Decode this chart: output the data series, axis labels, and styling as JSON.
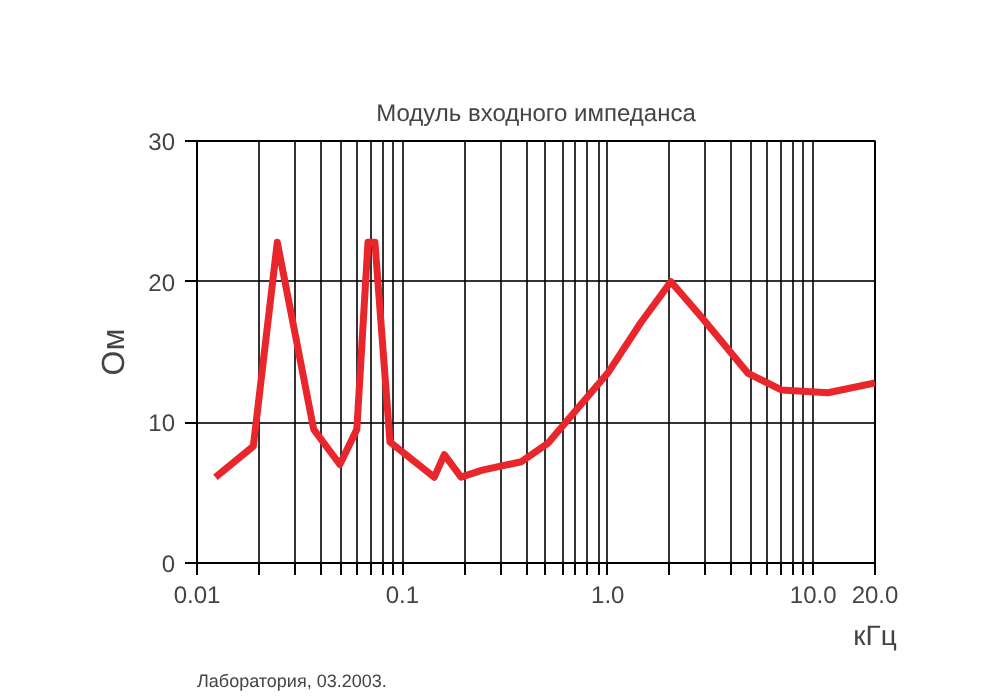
{
  "chart_data": {
    "type": "line",
    "title": "Модуль входного импеданса",
    "xlabel": "кГц",
    "ylabel": "Ом",
    "annotations": [
      "Лаборатория, 03.2003."
    ],
    "x": [
      0.0123,
      0.0188,
      0.0246,
      0.037,
      0.0496,
      0.06,
      0.068,
      0.0735,
      0.087,
      0.143,
      0.16,
      0.193,
      0.245,
      0.38,
      0.51,
      1.0,
      1.45,
      2.03,
      2.85,
      4.8,
      7.0,
      11.8,
      20
    ],
    "series": [
      {
        "color": "#e8262b",
        "values": [
          6.1,
          8.3,
          22.8,
          9.5,
          7.0,
          9.5,
          22.8,
          22.8,
          8.6,
          6.1,
          7.7,
          6.1,
          6.6,
          7.2,
          8.5,
          13.5,
          17.1,
          20.0,
          17.5,
          13.5,
          12.3,
          12.1,
          12.8
        ]
      }
    ],
    "log": "x",
    "xlim": [
      0.01,
      20
    ],
    "ylim": [
      0,
      30
    ],
    "xticks": [
      {
        "value": 0.01,
        "label": "0.01"
      },
      {
        "value": 0.02,
        "label": null
      },
      {
        "value": 0.03,
        "label": null
      },
      {
        "value": 0.04,
        "label": null
      },
      {
        "value": 0.05,
        "label": null
      },
      {
        "value": 0.06,
        "label": null
      },
      {
        "value": 0.07,
        "label": null
      },
      {
        "value": 0.08,
        "label": null
      },
      {
        "value": 0.09,
        "label": null
      },
      {
        "value": 0.1,
        "label": "0.1"
      },
      {
        "value": 0.2,
        "label": null
      },
      {
        "value": 0.3,
        "label": null
      },
      {
        "value": 0.4,
        "label": null
      },
      {
        "value": 0.5,
        "label": null
      },
      {
        "value": 0.6,
        "label": null
      },
      {
        "value": 0.7,
        "label": null
      },
      {
        "value": 0.8,
        "label": null
      },
      {
        "value": 0.9,
        "label": null
      },
      {
        "value": 1,
        "label": "1.0"
      },
      {
        "value": 2,
        "label": null
      },
      {
        "value": 3,
        "label": null
      },
      {
        "value": 4,
        "label": null
      },
      {
        "value": 5,
        "label": null
      },
      {
        "value": 6,
        "label": null
      },
      {
        "value": 7,
        "label": null
      },
      {
        "value": 8,
        "label": null
      },
      {
        "value": 9,
        "label": null
      },
      {
        "value": 10,
        "label": "10.0"
      },
      {
        "value": 20,
        "label": "20.0"
      }
    ],
    "yticks": [
      0,
      10,
      20,
      30
    ],
    "grid": true,
    "line_style": "solid",
    "marker": "none"
  }
}
